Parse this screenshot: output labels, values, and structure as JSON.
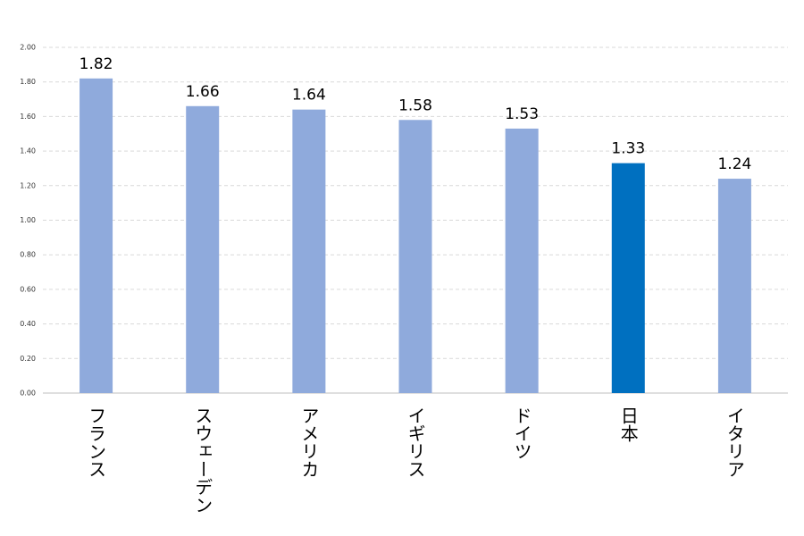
{
  "chart_data": {
    "type": "bar",
    "categories": [
      "フランス",
      "スウェーデン",
      "アメリカ",
      "イギリス",
      "ドイツ",
      "日本",
      "イタリア"
    ],
    "values": [
      1.82,
      1.66,
      1.64,
      1.58,
      1.53,
      1.33,
      1.24
    ],
    "colors": [
      "#8faadc",
      "#8faadc",
      "#8faadc",
      "#8faadc",
      "#8faadc",
      "#0070c0",
      "#8faadc"
    ],
    "ylim": [
      0,
      2
    ],
    "yticks": [
      {
        "value": 0,
        "label": "0.00"
      },
      {
        "value": 0.2,
        "label": "0.20"
      },
      {
        "value": 0.4,
        "label": "0.40"
      },
      {
        "value": 0.6,
        "label": "0.60"
      },
      {
        "value": 0.8,
        "label": "0.80"
      },
      {
        "value": 1,
        "label": "1.00"
      },
      {
        "value": 1.2,
        "label": "1.20"
      },
      {
        "value": 1.4,
        "label": "1.40"
      },
      {
        "value": 1.6,
        "label": "1.60"
      },
      {
        "value": 1.8,
        "label": "1.80"
      },
      {
        "value": 2,
        "label": "2.00"
      }
    ],
    "grid": true
  }
}
